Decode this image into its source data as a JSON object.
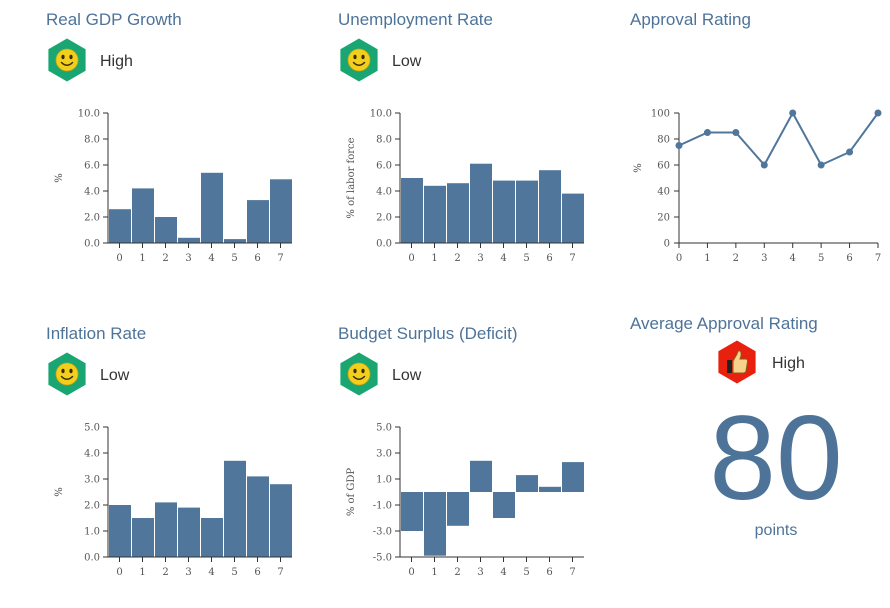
{
  "panels": [
    {
      "title": "Real GDP Growth",
      "status": "High",
      "icon": "smiley-icon"
    },
    {
      "title": "Unemployment Rate",
      "status": "Low",
      "icon": "smiley-icon"
    },
    {
      "title": "Approval Rating"
    },
    {
      "title": "Inflation Rate",
      "status": "Low",
      "icon": "smiley-icon"
    },
    {
      "title": "Budget Surplus (Deficit)",
      "status": "Low",
      "icon": "smiley-icon"
    },
    {
      "title": "Average Approval Rating",
      "status": "High",
      "icon": "thumbs-up-icon"
    }
  ],
  "average_approval": {
    "value": "80",
    "unit": "points"
  },
  "colors": {
    "bar": "#50769b",
    "title": "#4e7399",
    "badge_green": "#1aa672",
    "badge_red": "#e8200e",
    "face": "#f3cf1d"
  },
  "chart_data": [
    {
      "type": "bar",
      "categories": [
        "0",
        "1",
        "2",
        "3",
        "4",
        "5",
        "6",
        "7"
      ],
      "values": [
        2.6,
        4.2,
        2.0,
        0.4,
        5.4,
        0.3,
        3.3,
        4.9
      ],
      "title": "",
      "xlabel": "",
      "ylabel": "%",
      "ylim": [
        0,
        10
      ],
      "yticks": [
        "0.0",
        "2.0",
        "4.0",
        "6.0",
        "8.0",
        "10.0"
      ]
    },
    {
      "type": "bar",
      "categories": [
        "0",
        "1",
        "2",
        "3",
        "4",
        "5",
        "6",
        "7"
      ],
      "values": [
        5.0,
        4.4,
        4.6,
        6.1,
        4.8,
        4.8,
        5.6,
        3.8
      ],
      "title": "",
      "xlabel": "",
      "ylabel": "% of labor force",
      "ylim": [
        0,
        10
      ],
      "yticks": [
        "0.0",
        "2.0",
        "4.0",
        "6.0",
        "8.0",
        "10.0"
      ]
    },
    {
      "type": "line",
      "categories": [
        "0",
        "1",
        "2",
        "3",
        "4",
        "5",
        "6",
        "7"
      ],
      "values": [
        75,
        85,
        85,
        60,
        100,
        60,
        70,
        100
      ],
      "title": "",
      "xlabel": "",
      "ylabel": "%",
      "ylim": [
        0,
        100
      ],
      "yticks": [
        "0",
        "20",
        "40",
        "60",
        "80",
        "100"
      ]
    },
    {
      "type": "bar",
      "categories": [
        "0",
        "1",
        "2",
        "3",
        "4",
        "5",
        "6",
        "7"
      ],
      "values": [
        2.0,
        1.5,
        2.1,
        1.9,
        1.5,
        3.7,
        3.1,
        2.8
      ],
      "title": "",
      "xlabel": "",
      "ylabel": "%",
      "ylim": [
        0,
        5
      ],
      "yticks": [
        "0.0",
        "1.0",
        "2.0",
        "3.0",
        "4.0",
        "5.0"
      ]
    },
    {
      "type": "bar",
      "categories": [
        "0",
        "1",
        "2",
        "3",
        "4",
        "5",
        "6",
        "7"
      ],
      "values": [
        -3.0,
        -4.9,
        -2.6,
        2.4,
        -2.0,
        1.3,
        0.4,
        2.3
      ],
      "title": "",
      "xlabel": "",
      "ylabel": "% of GDP",
      "ylim": [
        -5,
        5
      ],
      "yticks": [
        "-5.0",
        "-3.0",
        "-1.0",
        "1.0",
        "3.0",
        "5.0"
      ]
    }
  ]
}
